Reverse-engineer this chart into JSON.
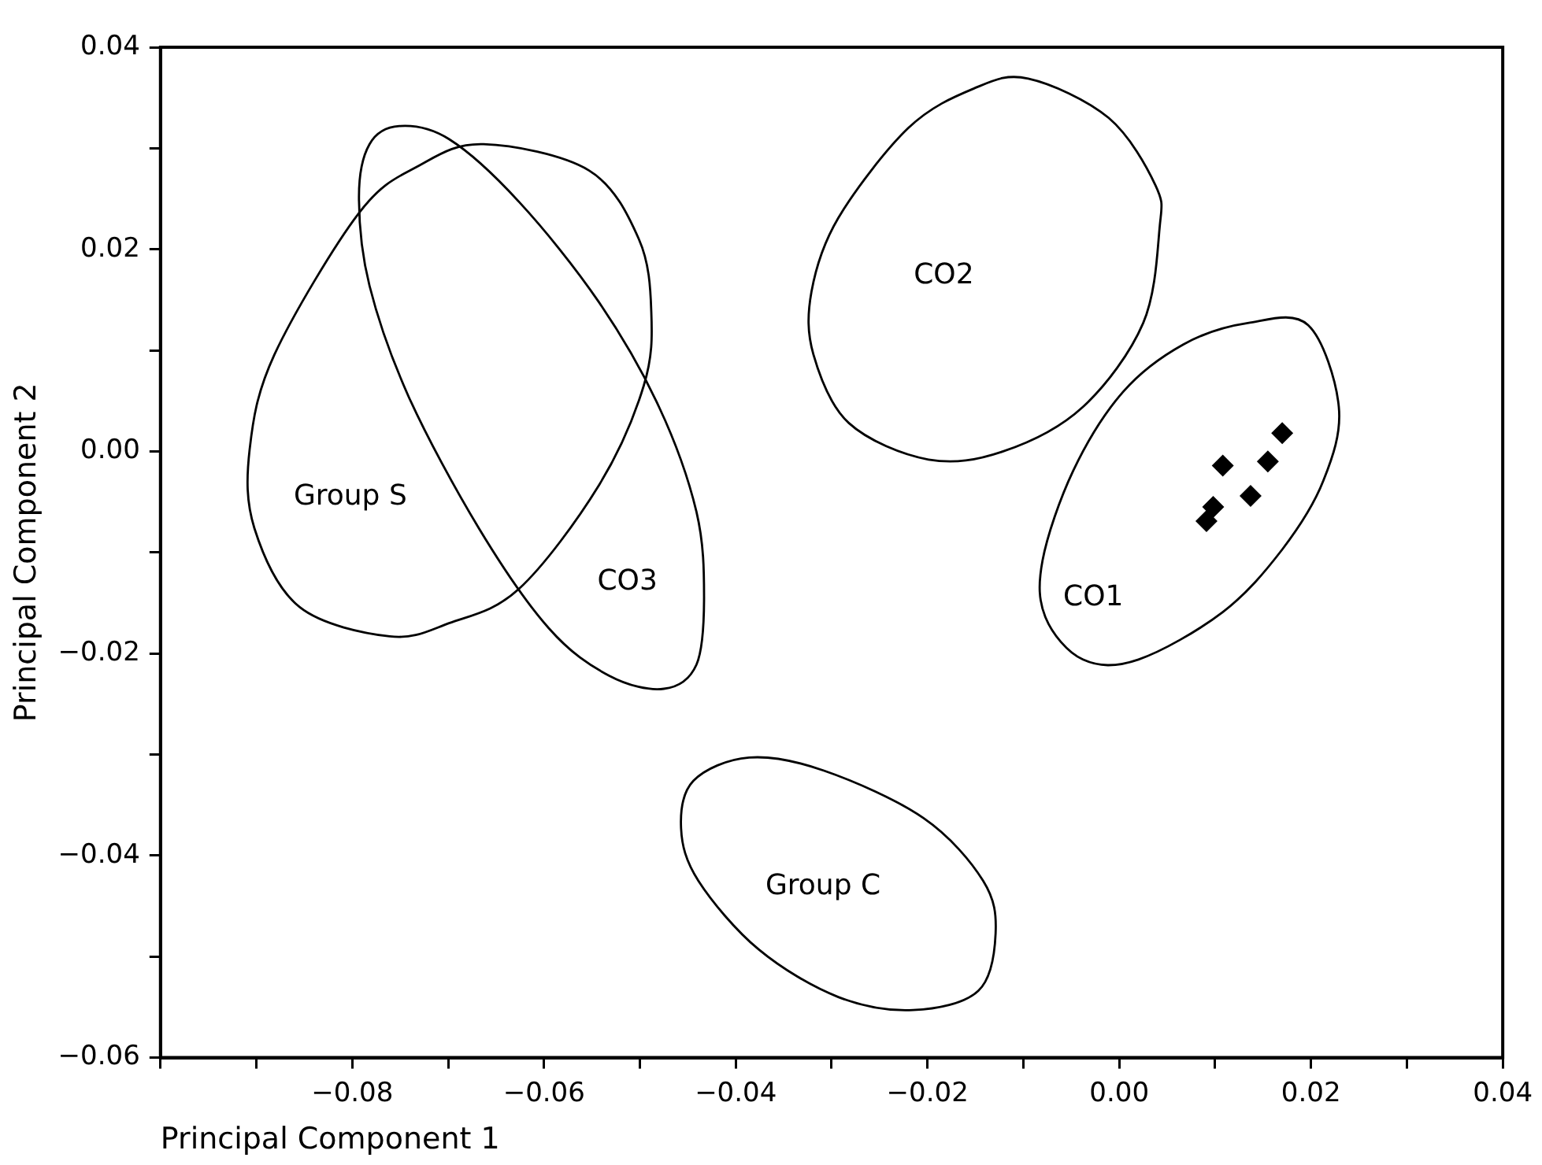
{
  "chart_data": {
    "type": "scatter",
    "xlabel": "Principal Component 1",
    "ylabel": "Principal Component 2",
    "xlim": [
      -0.1,
      0.04
    ],
    "ylim": [
      -0.06,
      0.04
    ],
    "xticks": [
      {
        "value": -0.1,
        "label": null
      },
      {
        "value": -0.09,
        "label": null
      },
      {
        "value": -0.08,
        "label": "−0.08"
      },
      {
        "value": -0.07,
        "label": null
      },
      {
        "value": -0.06,
        "label": "−0.06"
      },
      {
        "value": -0.05,
        "label": null
      },
      {
        "value": -0.04,
        "label": "−0.04"
      },
      {
        "value": -0.03,
        "label": null
      },
      {
        "value": -0.02,
        "label": "−0.02"
      },
      {
        "value": -0.01,
        "label": null
      },
      {
        "value": 0,
        "label": "0.00"
      },
      {
        "value": 0.01,
        "label": null
      },
      {
        "value": 0.02,
        "label": "0.02"
      },
      {
        "value": 0.03,
        "label": null
      },
      {
        "value": 0.04,
        "label": "0.04"
      }
    ],
    "yticks": [
      {
        "value": -0.06,
        "label": "−0.06"
      },
      {
        "value": -0.05,
        "label": null
      },
      {
        "value": -0.04,
        "label": "−0.04"
      },
      {
        "value": -0.03,
        "label": null
      },
      {
        "value": -0.02,
        "label": "−0.02"
      },
      {
        "value": -0.01,
        "label": null
      },
      {
        "value": 0,
        "label": "0.00"
      },
      {
        "value": 0.01,
        "label": null
      },
      {
        "value": 0.02,
        "label": "0.02"
      },
      {
        "value": 0.03,
        "label": null
      },
      {
        "value": 0.04,
        "label": "0.04"
      }
    ],
    "marker": "diamond",
    "series": [
      {
        "color": "#000000",
        "x": [
          0.017,
          0.0108,
          0.0155,
          0.0137,
          0.0098,
          0.0091
        ],
        "values": [
          0.0018,
          -0.0014,
          -0.001,
          -0.0044,
          -0.0055,
          -0.0069
        ]
      }
    ],
    "annotations": [
      "CO2",
      "CO1",
      "Group S",
      "CO3",
      "Group C"
    ]
  }
}
